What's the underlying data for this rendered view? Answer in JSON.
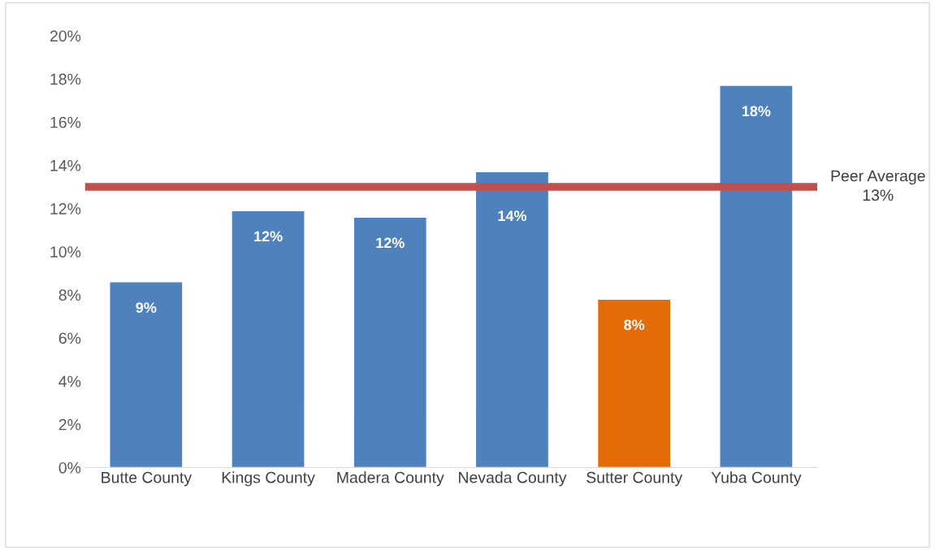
{
  "chart_data": {
    "type": "bar",
    "categories": [
      "Butte County",
      "Kings County",
      "Madera County",
      "Nevada County",
      "Sutter County",
      "Yuba County"
    ],
    "values": [
      8.6,
      11.9,
      11.6,
      13.7,
      7.8,
      17.7
    ],
    "colors": [
      "#4f81bd",
      "#4f81bd",
      "#4f81bd",
      "#4f81bd",
      "#e36c09",
      "#4f81bd"
    ],
    "value_labels": [
      "9%",
      "12%",
      "12%",
      "14%",
      "8%",
      "18%"
    ],
    "ylim": [
      0,
      20
    ],
    "yticks": [
      {
        "value": 0,
        "label": "0%"
      },
      {
        "value": 2,
        "label": "2%"
      },
      {
        "value": 4,
        "label": "4%"
      },
      {
        "value": 6,
        "label": "6%"
      },
      {
        "value": 8,
        "label": "8%"
      },
      {
        "value": 10,
        "label": "10%"
      },
      {
        "value": 12,
        "label": "12%"
      },
      {
        "value": 14,
        "label": "14%"
      },
      {
        "value": 16,
        "label": "16%"
      },
      {
        "value": 18,
        "label": "18%"
      },
      {
        "value": 20,
        "label": "20%"
      }
    ],
    "ref_lines": [
      {
        "axis": "y",
        "value": 13,
        "label": "Peer Average\n13%",
        "color": "#c0504d",
        "line_style": "solid"
      }
    ],
    "grid": false,
    "legend": false
  }
}
